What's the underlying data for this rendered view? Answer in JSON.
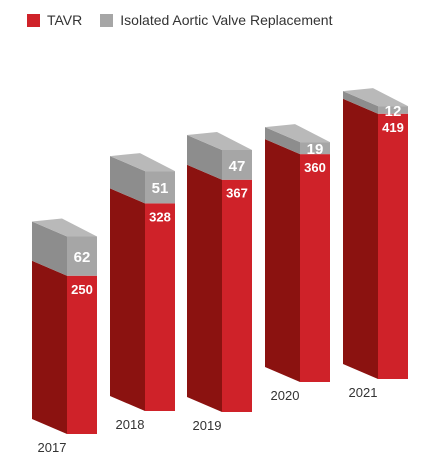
{
  "chart_data": {
    "type": "bar",
    "stacked": true,
    "style": "3d-stacked-columns",
    "categories": [
      "2017",
      "2018",
      "2019",
      "2020",
      "2021"
    ],
    "series": [
      {
        "name": "TAVR",
        "values": [
          250,
          328,
          367,
          360,
          419
        ],
        "color": "#cf2229"
      },
      {
        "name": "Isolated Aortic Valve Replacement",
        "values": [
          62,
          51,
          47,
          19,
          12
        ],
        "color": "#a6a6a6"
      }
    ],
    "title": "",
    "xlabel": "",
    "ylabel": "",
    "legend": "top-left",
    "grid": false
  },
  "legend": {
    "items": [
      {
        "label": "TAVR",
        "color": "#cf2229"
      },
      {
        "label": "Isolated Aortic Valve Replacement",
        "color": "#a6a6a6"
      }
    ]
  },
  "colors": {
    "tavr_front": "#cf2229",
    "tavr_side": "#8b1210",
    "iavr_front": "#a6a6a6",
    "iavr_side": "#8d8d8d",
    "iavr_top": "#b9b9b9",
    "label_text": "#ffffff",
    "axis_text": "#333333"
  }
}
